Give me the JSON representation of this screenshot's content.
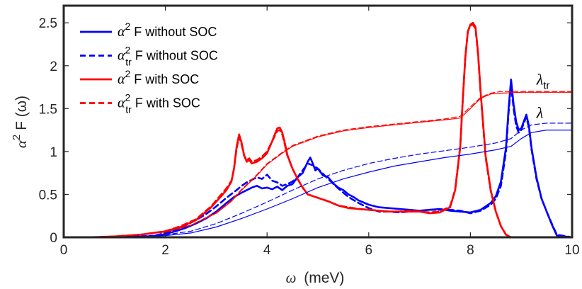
{
  "chart_data": {
    "type": "line",
    "xlabel_symbol": "ω",
    "xlabel_unit": "(meV)",
    "ylabel_text": "α² F (ω)",
    "xlim": [
      0,
      10
    ],
    "ylim": [
      0,
      2.7
    ],
    "xticks": [
      0,
      2,
      4,
      6,
      8,
      10
    ],
    "xtick_labels": [
      "0",
      "2",
      "4",
      "6",
      "8",
      "10"
    ],
    "yticks": [
      0,
      0.5,
      1,
      1.5,
      2,
      2.5
    ],
    "ytick_labels": [
      "0",
      "0.5",
      "1",
      "1.5",
      "2",
      "2.5"
    ],
    "grid": false,
    "legend_position": "top-left",
    "annotations": [
      {
        "text": "λtr",
        "x": 9.3,
        "y": 1.78
      },
      {
        "text": "λ",
        "x": 9.3,
        "y": 1.39
      }
    ],
    "series": [
      {
        "name": "α² F without SOC",
        "color": "#0000ff",
        "dash": "solid",
        "width": 2.6,
        "x": [
          0,
          1.5,
          1.8,
          2.0,
          2.2,
          2.4,
          2.6,
          2.8,
          3.0,
          3.2,
          3.35,
          3.5,
          3.6,
          3.7,
          3.8,
          3.9,
          4.0,
          4.1,
          4.2,
          4.3,
          4.4,
          4.5,
          4.6,
          4.7,
          4.8,
          4.85,
          4.9,
          4.95,
          5.0,
          5.1,
          5.2,
          5.3,
          5.4,
          5.5,
          5.6,
          5.7,
          5.8,
          6.0,
          6.2,
          6.4,
          6.6,
          6.8,
          7.0,
          7.2,
          7.4,
          7.6,
          7.8,
          8.0,
          8.2,
          8.4,
          8.5,
          8.6,
          8.7,
          8.75,
          8.8,
          8.85,
          8.9,
          8.95,
          9.0,
          9.05,
          9.1,
          9.15,
          9.2,
          9.3,
          9.4,
          9.5,
          9.6,
          9.7,
          10
        ],
        "y": [
          0,
          0,
          0.01,
          0.04,
          0.07,
          0.11,
          0.16,
          0.22,
          0.3,
          0.4,
          0.47,
          0.52,
          0.55,
          0.58,
          0.6,
          0.57,
          0.58,
          0.56,
          0.59,
          0.55,
          0.6,
          0.62,
          0.7,
          0.75,
          0.88,
          0.93,
          0.86,
          0.78,
          0.8,
          0.72,
          0.7,
          0.63,
          0.58,
          0.55,
          0.5,
          0.47,
          0.43,
          0.38,
          0.35,
          0.34,
          0.33,
          0.32,
          0.31,
          0.32,
          0.33,
          0.31,
          0.3,
          0.29,
          0.32,
          0.4,
          0.48,
          0.65,
          1.05,
          1.5,
          1.84,
          1.55,
          1.35,
          1.25,
          1.27,
          1.35,
          1.43,
          1.3,
          1.05,
          0.7,
          0.45,
          0.3,
          0.15,
          0.02,
          0
        ]
      },
      {
        "name": "α²tr F without SOC",
        "color": "#0000ff",
        "dash": "dashed",
        "width": 2.6,
        "x": [
          0,
          1.5,
          1.8,
          2.0,
          2.2,
          2.4,
          2.6,
          2.8,
          3.0,
          3.2,
          3.4,
          3.5,
          3.6,
          3.7,
          3.8,
          3.9,
          4.0,
          4.1,
          4.2,
          4.3,
          4.4,
          4.5,
          4.6,
          4.7,
          4.8,
          4.9,
          5.0,
          5.2,
          5.4,
          5.6,
          5.8,
          6.0,
          6.2,
          6.4,
          6.6,
          6.8,
          7.0,
          7.2,
          7.4,
          7.6,
          7.8,
          8.0,
          8.2,
          8.4,
          8.5,
          8.6,
          8.7,
          8.75,
          8.8,
          8.85,
          8.9,
          8.95,
          9.0,
          9.05,
          9.1,
          9.15,
          9.2,
          9.3,
          9.4,
          9.5,
          9.6,
          9.7,
          10
        ],
        "y": [
          0,
          0,
          0.02,
          0.05,
          0.09,
          0.14,
          0.2,
          0.27,
          0.36,
          0.46,
          0.55,
          0.6,
          0.64,
          0.67,
          0.7,
          0.68,
          0.73,
          0.66,
          0.64,
          0.6,
          0.62,
          0.65,
          0.7,
          0.78,
          0.86,
          0.84,
          0.8,
          0.68,
          0.57,
          0.47,
          0.4,
          0.34,
          0.3,
          0.3,
          0.29,
          0.3,
          0.31,
          0.32,
          0.32,
          0.32,
          0.31,
          0.28,
          0.31,
          0.38,
          0.45,
          0.6,
          1.0,
          1.45,
          1.78,
          1.5,
          1.3,
          1.22,
          1.25,
          1.33,
          1.4,
          1.28,
          1.03,
          0.68,
          0.45,
          0.3,
          0.16,
          0.03,
          0
        ]
      },
      {
        "name": "α² F with SOC",
        "color": "#ff0000",
        "dash": "solid",
        "width": 2.6,
        "x": [
          0,
          0.5,
          1.0,
          1.5,
          2.0,
          2.3,
          2.6,
          2.9,
          3.1,
          3.2,
          3.3,
          3.35,
          3.4,
          3.45,
          3.5,
          3.55,
          3.6,
          3.65,
          3.7,
          3.8,
          3.9,
          4.0,
          4.1,
          4.15,
          4.2,
          4.25,
          4.3,
          4.35,
          4.4,
          4.5,
          4.6,
          4.7,
          4.8,
          5.0,
          5.2,
          5.4,
          5.6,
          5.8,
          6.0,
          6.2,
          6.4,
          6.6,
          6.8,
          7.0,
          7.2,
          7.4,
          7.6,
          7.7,
          7.8,
          7.85,
          7.9,
          7.95,
          8.0,
          8.05,
          8.1,
          8.15,
          8.2,
          8.3,
          8.4,
          8.5,
          8.6,
          8.7,
          8.8,
          10
        ],
        "y": [
          0,
          0,
          0.01,
          0.03,
          0.07,
          0.12,
          0.2,
          0.35,
          0.48,
          0.55,
          0.65,
          0.8,
          1.05,
          1.2,
          1.1,
          0.95,
          0.88,
          0.9,
          0.86,
          0.88,
          0.92,
          0.98,
          1.12,
          1.2,
          1.27,
          1.28,
          1.22,
          1.1,
          0.96,
          0.8,
          0.68,
          0.58,
          0.5,
          0.46,
          0.42,
          0.37,
          0.34,
          0.33,
          0.32,
          0.31,
          0.3,
          0.3,
          0.3,
          0.3,
          0.28,
          0.29,
          0.35,
          0.55,
          1.05,
          1.6,
          2.1,
          2.4,
          2.48,
          2.5,
          2.45,
          2.15,
          1.7,
          0.95,
          0.55,
          0.3,
          0.13,
          0.03,
          0,
          0
        ]
      },
      {
        "name": "α²tr F with SOC",
        "color": "#ff0000",
        "dash": "dashed",
        "width": 2.6,
        "x": [
          0,
          0.5,
          1.0,
          1.5,
          2.0,
          2.3,
          2.6,
          2.9,
          3.1,
          3.2,
          3.3,
          3.35,
          3.4,
          3.45,
          3.5,
          3.55,
          3.6,
          3.65,
          3.7,
          3.8,
          3.9,
          4.0,
          4.1,
          4.15,
          4.2,
          4.25,
          4.3,
          4.35,
          4.4,
          4.5,
          4.6,
          4.7,
          4.8,
          5.0,
          5.2,
          5.4,
          5.6,
          5.8,
          6.0,
          6.2,
          6.4,
          6.6,
          6.8,
          7.0,
          7.2,
          7.4,
          7.6,
          7.7,
          7.8,
          7.85,
          7.9,
          7.95,
          8.0,
          8.05,
          8.1,
          8.15,
          8.2,
          8.3,
          8.4,
          8.5,
          8.6,
          8.7,
          8.8,
          10
        ],
        "y": [
          0,
          0,
          0.01,
          0.03,
          0.07,
          0.13,
          0.21,
          0.36,
          0.5,
          0.57,
          0.66,
          0.8,
          1.03,
          1.17,
          1.08,
          0.95,
          0.9,
          0.92,
          0.88,
          0.9,
          0.94,
          1.0,
          1.12,
          1.18,
          1.24,
          1.25,
          1.2,
          1.08,
          0.95,
          0.8,
          0.68,
          0.58,
          0.5,
          0.46,
          0.42,
          0.37,
          0.35,
          0.33,
          0.32,
          0.31,
          0.3,
          0.3,
          0.31,
          0.3,
          0.29,
          0.3,
          0.36,
          0.56,
          1.06,
          1.6,
          2.1,
          2.4,
          2.47,
          2.48,
          2.43,
          2.13,
          1.68,
          0.93,
          0.54,
          0.3,
          0.13,
          0.03,
          0,
          0
        ]
      },
      {
        "name": "λ without SOC",
        "color": "#0000ff",
        "dash": "solid",
        "width": 1.2,
        "x": [
          0,
          1,
          2,
          2.5,
          3,
          3.5,
          4,
          4.5,
          5,
          5.5,
          6,
          6.5,
          7,
          7.5,
          8,
          8.5,
          8.8,
          9,
          9.2,
          9.5,
          10
        ],
        "y": [
          0,
          0.003,
          0.02,
          0.05,
          0.12,
          0.22,
          0.33,
          0.45,
          0.58,
          0.68,
          0.76,
          0.83,
          0.88,
          0.93,
          0.97,
          1.02,
          1.06,
          1.15,
          1.22,
          1.25,
          1.25
        ]
      },
      {
        "name": "λ with SOC",
        "color": "#ff0000",
        "dash": "solid",
        "width": 1.2,
        "x": [
          0,
          1,
          2,
          2.5,
          3,
          3.3,
          3.5,
          3.8,
          4,
          4.3,
          4.5,
          5,
          5.5,
          6,
          6.5,
          7,
          7.5,
          7.8,
          8,
          8.2,
          8.4,
          8.6,
          9,
          10
        ],
        "y": [
          0,
          0.01,
          0.06,
          0.14,
          0.28,
          0.42,
          0.55,
          0.72,
          0.85,
          0.98,
          1.06,
          1.17,
          1.24,
          1.28,
          1.31,
          1.34,
          1.37,
          1.39,
          1.5,
          1.62,
          1.67,
          1.68,
          1.69,
          1.69
        ]
      },
      {
        "name": "λtr without SOC",
        "color": "#0000ff",
        "dash": "dashed",
        "width": 1.2,
        "x": [
          0,
          1,
          2,
          2.5,
          3,
          3.5,
          4,
          4.5,
          5,
          5.5,
          6,
          6.5,
          7,
          7.5,
          8,
          8.5,
          8.8,
          9,
          9.2,
          9.5,
          10
        ],
        "y": [
          0,
          0.003,
          0.03,
          0.07,
          0.16,
          0.28,
          0.41,
          0.55,
          0.68,
          0.78,
          0.86,
          0.92,
          0.97,
          1.01,
          1.05,
          1.1,
          1.15,
          1.25,
          1.31,
          1.33,
          1.33
        ]
      },
      {
        "name": "λtr with SOC",
        "color": "#ff0000",
        "dash": "dashed",
        "width": 1.2,
        "x": [
          0,
          1,
          2,
          2.5,
          3,
          3.3,
          3.5,
          3.8,
          4,
          4.3,
          4.5,
          5,
          5.5,
          6,
          6.5,
          7,
          7.5,
          7.8,
          8,
          8.2,
          8.4,
          8.6,
          9,
          10
        ],
        "y": [
          0,
          0.01,
          0.06,
          0.14,
          0.29,
          0.43,
          0.56,
          0.73,
          0.86,
          0.99,
          1.07,
          1.18,
          1.25,
          1.29,
          1.32,
          1.35,
          1.38,
          1.41,
          1.52,
          1.63,
          1.68,
          1.7,
          1.7,
          1.7
        ]
      }
    ],
    "legend": [
      {
        "base": "α",
        "sup": "2",
        "sub": "",
        "rest": " F without SOC",
        "color": "#0000ff",
        "dash": "solid"
      },
      {
        "base": "α",
        "sup": "2",
        "sub": "tr",
        "rest": "  F without SOC",
        "color": "#0000ff",
        "dash": "dashed"
      },
      {
        "base": "α",
        "sup": "2",
        "sub": "",
        "rest": " F with SOC",
        "color": "#ff0000",
        "dash": "solid"
      },
      {
        "base": "α",
        "sup": "2",
        "sub": "tr",
        "rest": "  F with SOC",
        "color": "#ff0000",
        "dash": "dashed"
      }
    ]
  }
}
